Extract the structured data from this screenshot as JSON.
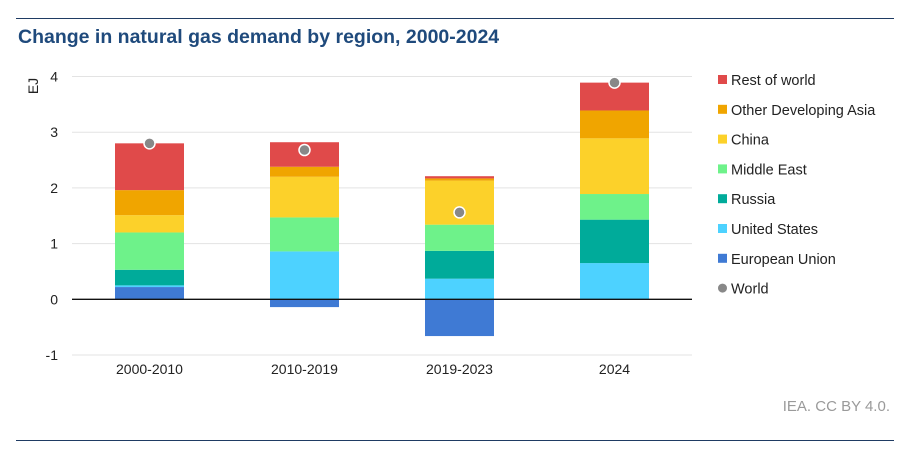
{
  "chart_data": {
    "type": "bar",
    "stacked": true,
    "title": "Change in natural gas demand by region, 2000-2024",
    "ylabel": "EJ",
    "xlabel": "",
    "ylim": [
      -1,
      4
    ],
    "yticks": [
      -1,
      0,
      1,
      2,
      3,
      4
    ],
    "grid": true,
    "legend_position": "right",
    "categories": [
      "2000-2010",
      "2010-2019",
      "2019-2023",
      "2024"
    ],
    "series": [
      {
        "name": "European Union",
        "color": "#3f7ad4",
        "values": [
          0.22,
          -0.14,
          -0.66,
          0
        ]
      },
      {
        "name": "United States",
        "color": "#4dd2ff",
        "values": [
          0.03,
          0.86,
          0.37,
          0.65
        ]
      },
      {
        "name": "Russia",
        "color": "#00ab9a",
        "values": [
          0.28,
          0,
          0.5,
          0.78
        ]
      },
      {
        "name": "Middle East",
        "color": "#6ef28a",
        "values": [
          0.67,
          0.61,
          0.47,
          0.46
        ]
      },
      {
        "name": "China",
        "color": "#fcd12a",
        "values": [
          0.31,
          0.73,
          0.79,
          1.0
        ]
      },
      {
        "name": "Other Developing Asia",
        "color": "#f0a500",
        "values": [
          0.45,
          0.18,
          0.04,
          0.5
        ]
      },
      {
        "name": "Rest of world",
        "color": "#e04a4a",
        "values": [
          0.84,
          0.44,
          0.04,
          0.5
        ]
      }
    ],
    "markers": {
      "name": "World",
      "color": "#888888",
      "values": [
        2.8,
        2.68,
        1.56,
        3.89
      ]
    }
  },
  "source": "IEA. CC BY 4.0."
}
